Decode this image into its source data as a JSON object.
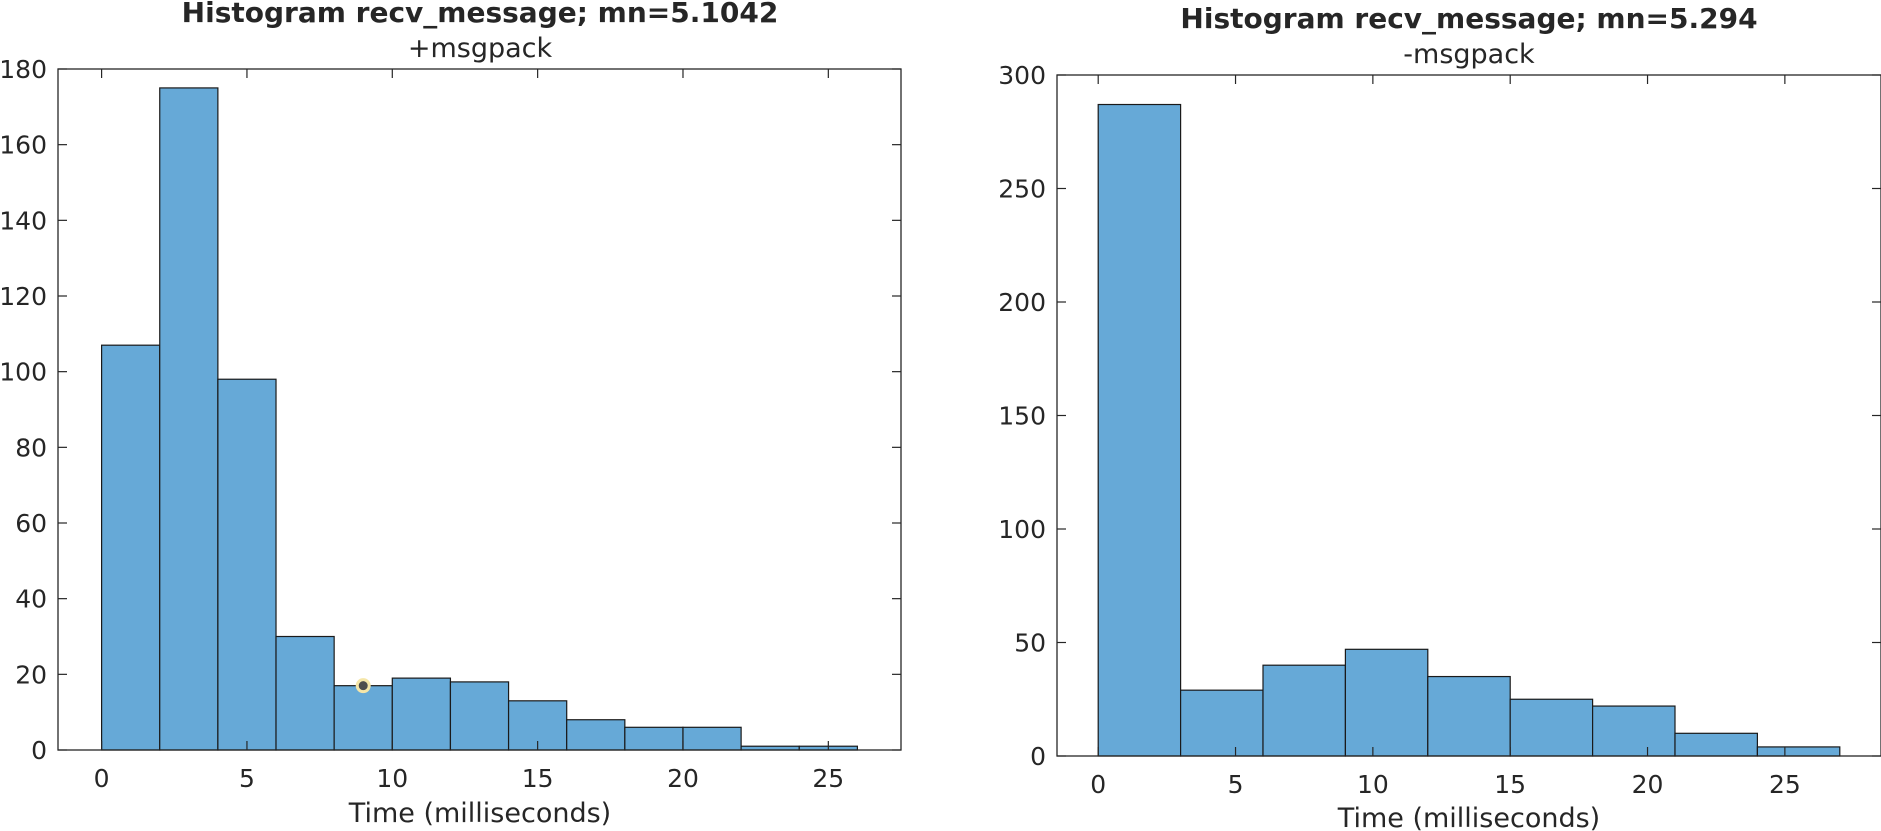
{
  "colors": {
    "bar_fill": "#66a9d7",
    "bar_edge": "#1a1a1a",
    "axis": "#262626",
    "marker_fill": "#4d4d4d",
    "marker_ring": "#f5e6a8"
  },
  "chart_data": [
    {
      "type": "bar",
      "title": "Histogram recv_message; mn=5.1042",
      "subtitle": "+msgpack",
      "xlabel": "Time (milliseconds)",
      "ylabel": "",
      "xlim": [
        -1.5,
        27.5
      ],
      "ylim": [
        0,
        180
      ],
      "xticks": [
        0,
        5,
        10,
        15,
        20,
        25
      ],
      "yticks": [
        0,
        20,
        40,
        60,
        80,
        100,
        120,
        140,
        160,
        180
      ],
      "bin_edges": [
        0,
        2,
        4,
        6,
        8,
        10,
        12,
        14,
        16,
        18,
        20,
        22,
        24,
        26
      ],
      "values": [
        107,
        175,
        98,
        30,
        17,
        19,
        18,
        13,
        8,
        6,
        6,
        1,
        1
      ],
      "grid": false,
      "annotations": [
        {
          "type": "marker",
          "x": 9,
          "y": 17
        }
      ]
    },
    {
      "type": "bar",
      "title": "Histogram recv_message; mn=5.294",
      "subtitle": "-msgpack",
      "xlabel": "Time (milliseconds)",
      "ylabel": "",
      "xlim": [
        -1.5,
        28.5
      ],
      "ylim": [
        0,
        300
      ],
      "xticks": [
        0,
        5,
        10,
        15,
        20,
        25
      ],
      "yticks": [
        0,
        50,
        100,
        150,
        200,
        250,
        300
      ],
      "bin_edges": [
        0,
        3,
        6,
        9,
        12,
        15,
        18,
        21,
        24,
        27
      ],
      "values": [
        287,
        29,
        40,
        47,
        35,
        25,
        22,
        10,
        4
      ],
      "grid": false,
      "annotations": []
    }
  ]
}
